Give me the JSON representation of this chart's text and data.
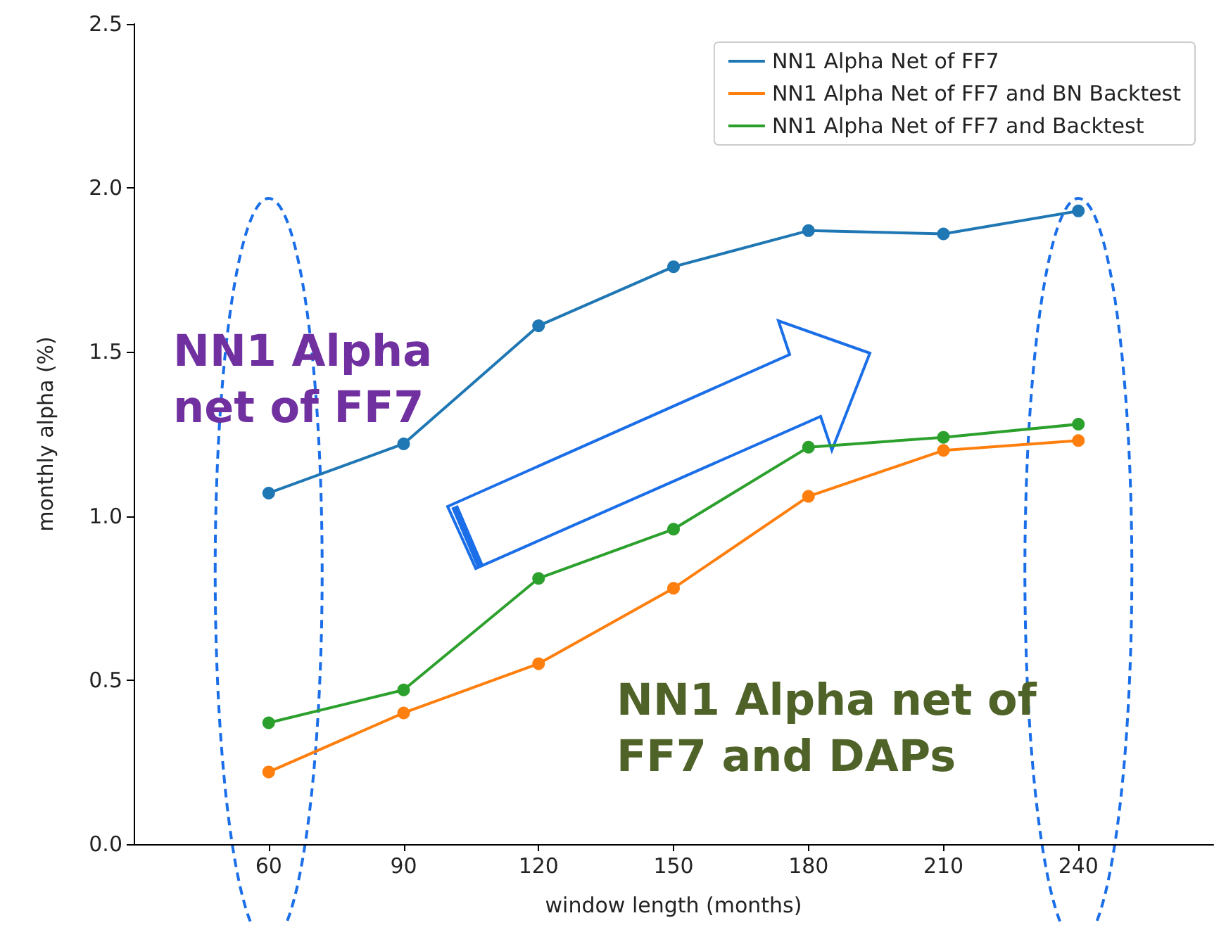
{
  "chart_data": {
    "type": "line",
    "xlabel": "window length (months)",
    "ylabel": "monthly alpha (%)",
    "x": [
      60,
      90,
      120,
      150,
      180,
      210,
      240
    ],
    "series": [
      {
        "name": "NN1 Alpha Net of FF7",
        "color": "#1f77b4",
        "values": [
          1.07,
          1.22,
          1.58,
          1.76,
          1.87,
          1.86,
          1.93
        ]
      },
      {
        "name": "NN1 Alpha Net of FF7 and BN Backtest",
        "color": "#ff7f0e",
        "values": [
          0.22,
          0.4,
          0.55,
          0.78,
          1.06,
          1.2,
          1.23
        ]
      },
      {
        "name": "NN1 Alpha Net of FF7 and Backtest",
        "color": "#2ca02c",
        "values": [
          0.37,
          0.47,
          0.81,
          0.96,
          1.21,
          1.24,
          1.28
        ]
      }
    ],
    "xlim": [
      30,
      270
    ],
    "xticks": [
      60,
      90,
      120,
      150,
      180,
      210,
      240
    ],
    "ylim": [
      0,
      2.5
    ],
    "yticks": [
      {
        "value": 0,
        "label": "0.0"
      },
      0.5,
      {
        "value": 1,
        "label": "1.0"
      },
      1.5,
      {
        "value": 2,
        "label": "2.0"
      },
      2.5
    ],
    "annotations": [
      "NN1 Alpha\nnet of FF7",
      "NN1 Alpha net of\nFF7 and DAPs"
    ],
    "legend": "top right",
    "marker": "circle",
    "line_style": "solid",
    "grid": false
  }
}
